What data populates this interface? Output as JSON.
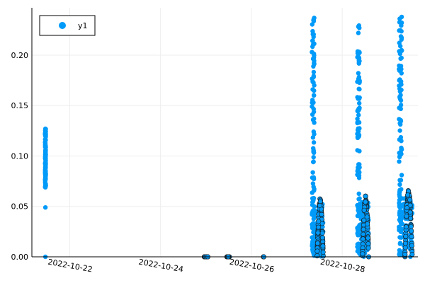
{
  "chart_data": {
    "type": "scatter",
    "title": "",
    "xlabel": "",
    "ylabel": "",
    "x_axis_kind": "date",
    "xlim": [
      "2022-10-21T04:00",
      "2022-10-29T16:00"
    ],
    "ylim": [
      0,
      0.247
    ],
    "x_ticks": [
      "2022-10-22",
      "2022-10-24",
      "2022-10-26",
      "2022-10-28"
    ],
    "y_ticks": [
      0.0,
      0.05,
      0.1,
      0.15,
      0.2
    ],
    "y_tick_labels": [
      "0.00",
      "0.05",
      "0.10",
      "0.15",
      "0.20"
    ],
    "grid": true,
    "legend": {
      "position": "top-left",
      "entries": [
        "y1"
      ]
    },
    "colors": {
      "series": "#009AF9",
      "edge": "#1a1a1a",
      "axis": "#000000",
      "grid": "#eeeeee"
    },
    "series": [
      {
        "name": "y1",
        "clusters": [
          {
            "x_start": "2022-10-21T11:00",
            "x_end": "2022-10-21T11:20",
            "y_min": 0.069,
            "y_max": 0.127,
            "n": 110,
            "extra_y": [
              0.0,
              0.049,
              0.069,
              0.127
            ]
          },
          {
            "x_start": "2022-10-24T23:00",
            "x_end": "2022-10-25T01:00",
            "y_min": 0.0,
            "y_max": 0.0,
            "n": 14
          },
          {
            "x_start": "2022-10-25T11:00",
            "x_end": "2022-10-25T12:30",
            "y_min": 0.0,
            "y_max": 0.0,
            "n": 10
          },
          {
            "x_start": "2022-10-26T06:00",
            "x_end": "2022-10-26T06:40",
            "y_min": 0.0,
            "y_max": 0.0,
            "n": 4
          },
          {
            "x_start": "2022-10-27T08:00",
            "x_end": "2022-10-27T14:00",
            "y_min": 0.0,
            "y_max": 0.058,
            "n": 280,
            "arc_peak": 0.058,
            "tall_y_max": 0.243
          },
          {
            "x_start": "2022-10-28T08:00",
            "x_end": "2022-10-28T14:00",
            "y_min": 0.0,
            "y_max": 0.061,
            "n": 260,
            "arc_peak": 0.061,
            "tall_y_max": 0.237
          },
          {
            "x_start": "2022-10-29T06:00",
            "x_end": "2022-10-29T13:00",
            "y_min": 0.0,
            "y_max": 0.067,
            "n": 270,
            "arc_peak": 0.067,
            "tall_y_max": 0.242
          }
        ]
      }
    ]
  }
}
